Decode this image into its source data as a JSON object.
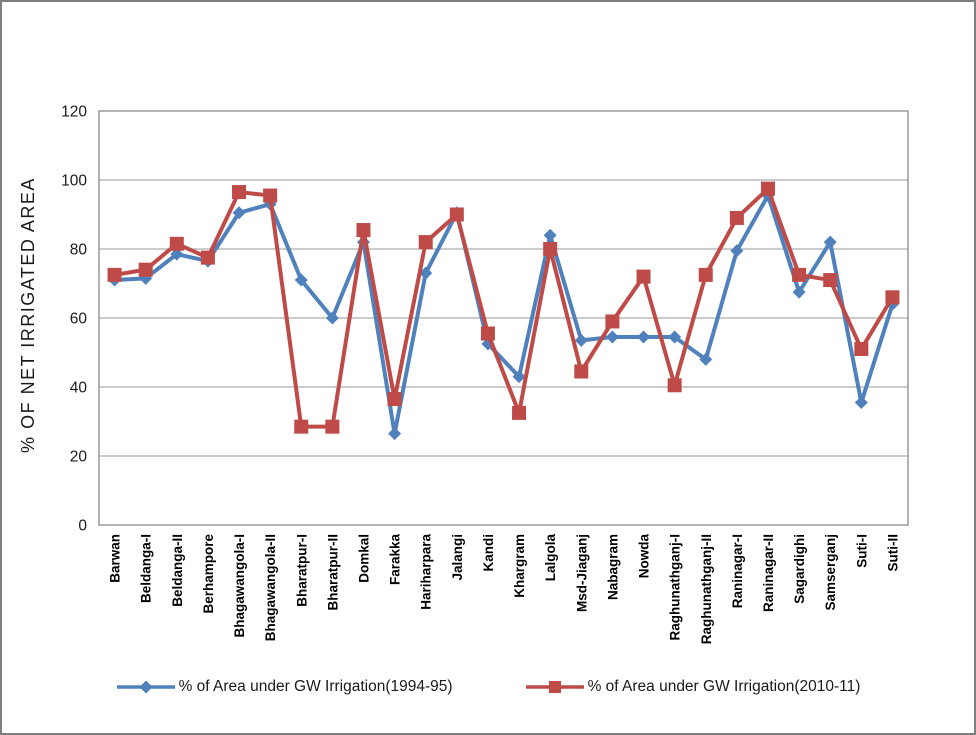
{
  "figure": {
    "background": "#ffffff",
    "border_color": "#7f7f7f",
    "plot_border_color": "#808080",
    "gridline_color": "#9a9a9a",
    "text_color": "#1a1a1a"
  },
  "chart_data": {
    "type": "line",
    "title": "",
    "xlabel": "",
    "ylabel": "% OF NET IRRIGATED AREA",
    "ylim": [
      0,
      120
    ],
    "y_ticks": [
      0,
      20,
      40,
      60,
      80,
      100,
      120
    ],
    "grid": "horizontal",
    "legend_position": "bottom",
    "categories": [
      "Barwan",
      "Beldanga-I",
      "Beldanga-II",
      "Berhampore",
      "Bhagawangola-I",
      "Bhagawangola-II",
      "Bharatpur-I",
      "Bharatpur-II",
      "Domkal",
      "Farakka",
      "Hariharpara",
      "Jalangi",
      "Kandi",
      "Khargram",
      "Lalgola",
      "Msd-Jiaganj",
      "Nabagram",
      "Nowda",
      "Raghunathganj-I",
      "Raghunathganj-II",
      "Raninagar-I",
      "Raninagar-II",
      "Sagardighi",
      "Samserganj",
      "Suti-I",
      "Suti-II"
    ],
    "series": [
      {
        "name": "% of Area under GW Irrigation(1994-95)",
        "color": "#4F81BD",
        "marker": "diamond",
        "values": [
          71,
          71.5,
          78.5,
          76.5,
          90.5,
          93,
          71,
          60,
          82,
          26.5,
          73,
          90.5,
          52.5,
          43,
          84,
          53.5,
          54.5,
          54.5,
          54.5,
          48,
          79.5,
          95.5,
          67.5,
          82,
          35.5,
          64
        ]
      },
      {
        "name": "% of Area under GW Irrigation(2010-11)",
        "color": "#BE4B48",
        "marker": "square",
        "values": [
          72.5,
          74,
          81.5,
          77.5,
          96.5,
          95.5,
          28.5,
          28.5,
          85.5,
          36.5,
          82,
          90,
          55.5,
          32.5,
          80,
          44.5,
          59,
          72,
          40.5,
          72.5,
          89,
          97.5,
          72.5,
          71,
          51,
          66
        ]
      }
    ]
  }
}
